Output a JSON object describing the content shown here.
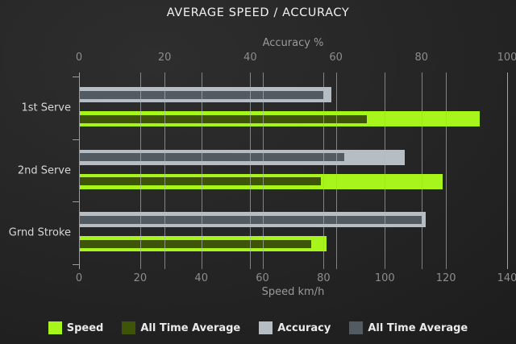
{
  "chart_data": {
    "type": "bar",
    "orientation": "horizontal",
    "title": "AVERAGE SPEED / ACCURACY",
    "categories": [
      "1st Serve",
      "2nd Serve",
      "Grnd Stroke"
    ],
    "axes": {
      "top": {
        "label": "Accuracy %",
        "min": 0,
        "max": 100,
        "ticks": [
          0,
          20,
          40,
          60,
          80,
          100
        ]
      },
      "bottom": {
        "label": "Speed km/h",
        "min": 0,
        "max": 140,
        "ticks": [
          0,
          20,
          40,
          60,
          80,
          100,
          120,
          140
        ]
      }
    },
    "grid": true,
    "legend_position": "bottom",
    "series": [
      {
        "name": "Speed",
        "axis": "bottom",
        "role": "outer",
        "color": "#a8f51c",
        "values": [
          131,
          119,
          81
        ]
      },
      {
        "name": "All Time Average",
        "axis": "bottom",
        "role": "inner",
        "color": "#3e5509",
        "values": [
          94,
          79,
          76
        ]
      },
      {
        "name": "Accuracy",
        "axis": "top",
        "role": "outer",
        "color": "#b6bdc3",
        "values": [
          59,
          76,
          81
        ]
      },
      {
        "name": "All Time Average",
        "axis": "top",
        "role": "inner",
        "color": "#535b62",
        "values": [
          57,
          62,
          80
        ]
      }
    ],
    "colors": {
      "background": "#222222",
      "grid": "#b2b7b9",
      "title_text": "#f1f1f1",
      "tick_text": "#8d8d8d",
      "category_text": "#d6d6d6",
      "legend_text": "#eaeaea"
    }
  }
}
